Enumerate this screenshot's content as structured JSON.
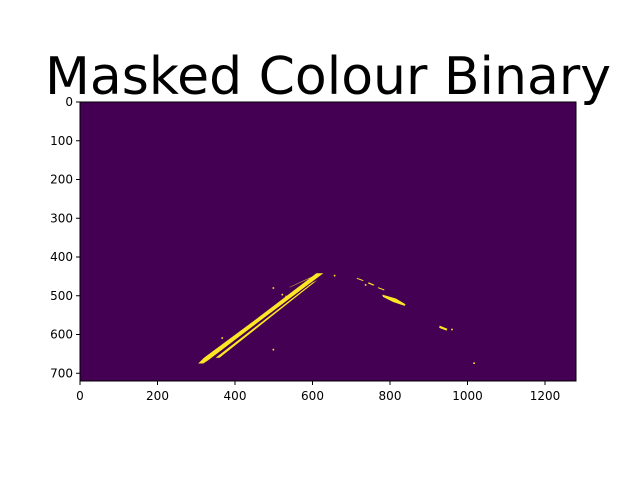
{
  "chart_data": {
    "type": "heatmap",
    "title": "Masked Colour Binary",
    "xlabel": "",
    "ylabel": "",
    "xlim": [
      0,
      1280
    ],
    "ylim": [
      720,
      0
    ],
    "image_width": 1280,
    "image_height": 720,
    "colormap": "viridis",
    "values": [
      0,
      1
    ],
    "colors": {
      "background": "#440154",
      "foreground": "#fde725"
    },
    "x_ticks": [
      0,
      200,
      400,
      600,
      800,
      1000,
      1200
    ],
    "x_tick_labels": [
      "0",
      "200",
      "400",
      "600",
      "800",
      "1000",
      "1200"
    ],
    "y_ticks": [
      0,
      100,
      200,
      300,
      400,
      500,
      600,
      700
    ],
    "y_tick_labels": [
      "0",
      "100",
      "200",
      "300",
      "400",
      "500",
      "600",
      "700"
    ],
    "grid": false,
    "legend": "none",
    "left_lane_strip": [
      [
        305,
        675
      ],
      [
        318,
        675
      ],
      [
        330,
        667
      ],
      [
        460,
        568
      ],
      [
        628,
        442
      ],
      [
        610,
        442
      ],
      [
        455,
        560
      ],
      [
        320,
        660
      ]
    ],
    "left_lane_inner": [
      [
        350,
        660
      ],
      [
        600,
        466
      ],
      [
        612,
        460
      ],
      [
        360,
        660
      ]
    ],
    "left_upper_dash": [
      [
        540,
        479
      ],
      [
        595,
        454
      ],
      [
        598,
        451
      ],
      [
        542,
        477
      ]
    ],
    "right_lane_strips": [
      [
        [
          780,
          497
        ],
        [
          815,
          507
        ],
        [
          840,
          522
        ],
        [
          838,
          526
        ],
        [
          808,
          516
        ],
        [
          782,
          503
        ]
      ],
      [
        [
          715,
          454
        ],
        [
          732,
          460
        ],
        [
          730,
          462
        ],
        [
          714,
          456
        ]
      ],
      [
        [
          745,
          465
        ],
        [
          760,
          472
        ],
        [
          757,
          474
        ],
        [
          743,
          468
        ]
      ],
      [
        [
          770,
          478
        ],
        [
          786,
          484
        ],
        [
          784,
          486
        ],
        [
          768,
          480
        ]
      ],
      [
        [
          928,
          577
        ],
        [
          948,
          585
        ],
        [
          946,
          590
        ],
        [
          927,
          583
        ]
      ]
    ],
    "specks": [
      [
        497,
        478
      ],
      [
        530,
        500
      ],
      [
        520,
        495
      ],
      [
        365,
        607
      ],
      [
        497,
        637
      ],
      [
        1015,
        672
      ],
      [
        958,
        585
      ],
      [
        735,
        470
      ],
      [
        655,
        446
      ]
    ]
  }
}
